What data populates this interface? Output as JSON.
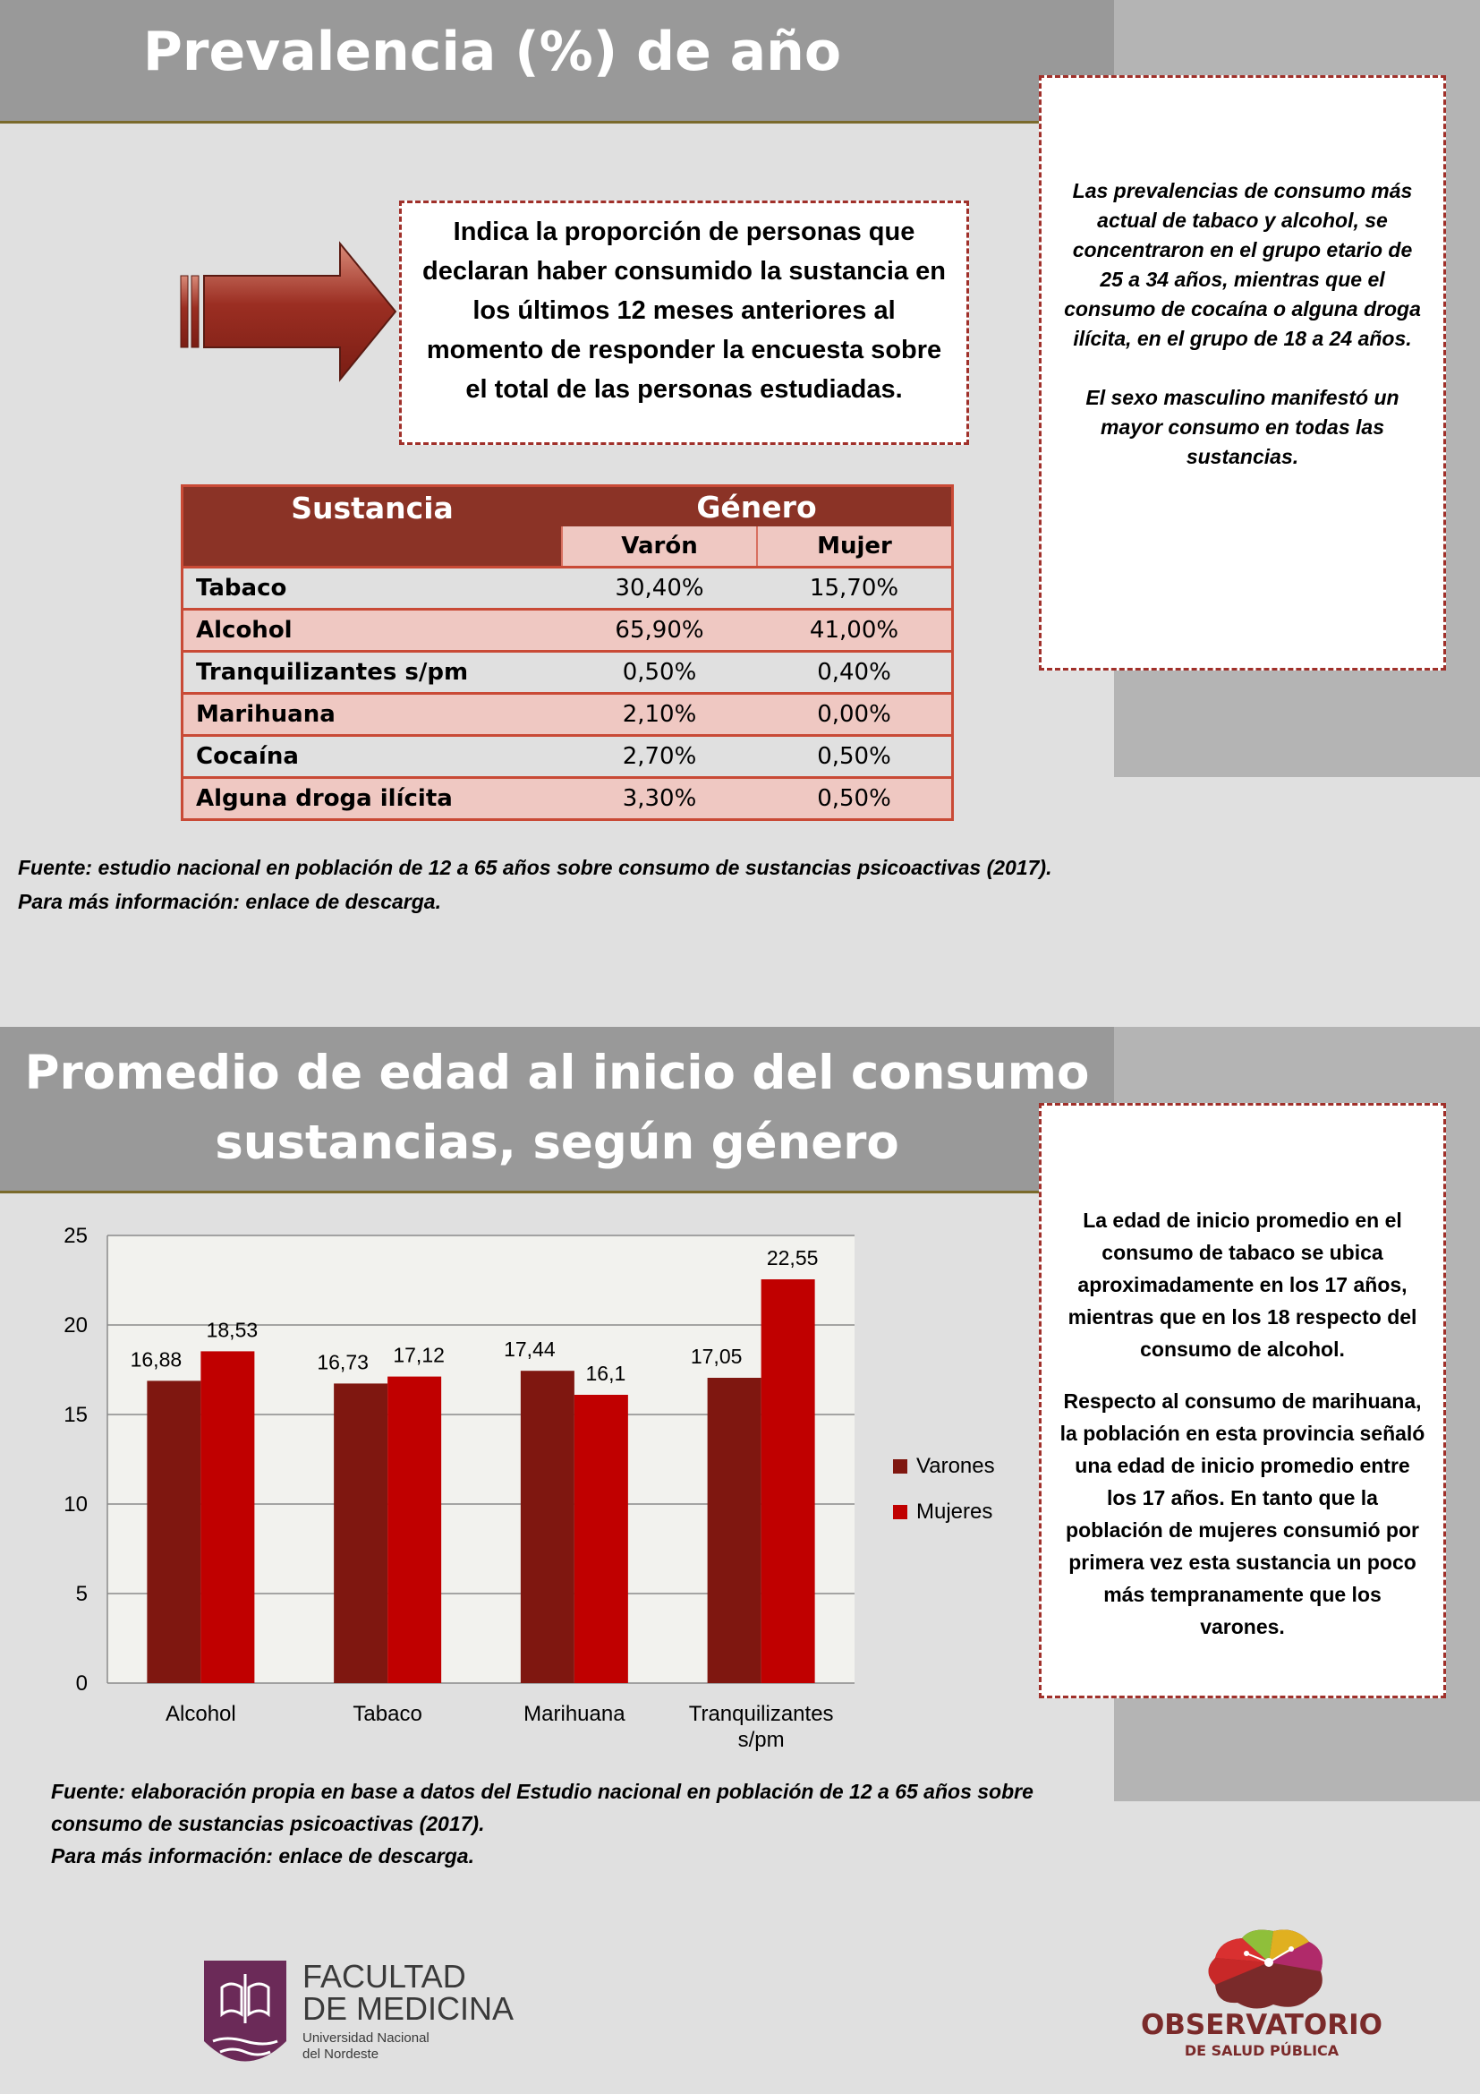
{
  "section1": {
    "title": "Prevalencia (%) de año",
    "definition": "Indica la proporción de personas que declaran haber consumido la sustancia en los últimos 12 meses anteriores al momento de responder la encuesta sobre el total de las personas estudiadas.",
    "note_p1": "Las prevalencias de consumo más actual de tabaco y alcohol, se concentraron en el grupo etario de 25 a 34 años, mientras que el consumo de  cocaína o alguna droga ilícita, en el grupo de 18 a 24 años.",
    "note_p2": "El sexo masculino manifestó un mayor consumo en todas las sustancias.",
    "table": {
      "col_substance": "Sustancia",
      "col_gender": "Género",
      "col_male": "Varón",
      "col_female": "Mujer",
      "rows": [
        {
          "name": "Tabaco",
          "male": "30,40%",
          "female": "15,70%"
        },
        {
          "name": "Alcohol",
          "male": "65,90%",
          "female": "41,00%"
        },
        {
          "name": "Tranquilizantes s/pm",
          "male": "0,50%",
          "female": "0,40%"
        },
        {
          "name": "Marihuana",
          "male": "2,10%",
          "female": "0,00%"
        },
        {
          "name": "Cocaína",
          "male": "2,70%",
          "female": "0,50%"
        },
        {
          "name": "Alguna droga ilícita",
          "male": "3,30%",
          "female": "0,50%"
        }
      ]
    },
    "source_line1": "Fuente: estudio nacional en población de 12 a 65 años sobre consumo de sustancias psicoactivas (2017).",
    "source_line2": "Para más información: enlace de descarga."
  },
  "section2": {
    "title_line1": "Promedio de edad al inicio del consumo",
    "title_line2": "sustancias, según género",
    "note_p1": "La edad de inicio promedio en el consumo de tabaco se ubica aproximadamente en los 17 años, mientras que en los 18 respecto del consumo de alcohol.",
    "note_p2": "Respecto al consumo de marihuana, la población en esta provincia señaló una edad de inicio promedio entre los 17 años. En tanto que la población de mujeres consumió por primera vez esta sustancia un poco más tempranamente que los varones.",
    "source_line1": "Fuente: elaboración propia en base a datos del Estudio nacional en población de 12 a 65 años sobre",
    "source_line2": "consumo de sustancias psicoactivas (2017).",
    "source_line3": "Para más información: enlace de descarga."
  },
  "chart_data": {
    "type": "bar",
    "categories": [
      "Alcohol",
      "Tabaco",
      "Marihuana",
      "Tranquilizantes s/pm"
    ],
    "category_lines": [
      [
        "Alcohol"
      ],
      [
        "Tabaco"
      ],
      [
        "Marihuana"
      ],
      [
        "Tranquilizantes",
        "s/pm"
      ]
    ],
    "series": [
      {
        "name": "Varones",
        "values": [
          16.88,
          16.73,
          17.44,
          17.05
        ],
        "labels": [
          "16,88",
          "16,73",
          "17,44",
          "17,05"
        ],
        "color": "#7f1710"
      },
      {
        "name": "Mujeres",
        "values": [
          18.53,
          17.12,
          16.1,
          22.55
        ],
        "labels": [
          "18,53",
          "17,12",
          "16,1",
          "22,55"
        ],
        "color": "#c00000"
      }
    ],
    "ylim": [
      0,
      25
    ],
    "yticks": [
      "0",
      "5",
      "10",
      "15",
      "20",
      "25"
    ],
    "legend_position": "right",
    "grid": true
  },
  "logos": {
    "faculty_line1": "FACULTAD",
    "faculty_line2": "DE MEDICINA",
    "faculty_line3": "Universidad Nacional",
    "faculty_line4": "del Nordeste",
    "observatory_line1": "OBSERVATORIO",
    "observatory_line2": "DE SALUD PÚBLICA"
  },
  "colors": {
    "accent_dark_red": "#8b3326",
    "table_pink": "#efc8c2",
    "header_gray": "#999999",
    "sidebar_gray": "#b4b4b4"
  }
}
